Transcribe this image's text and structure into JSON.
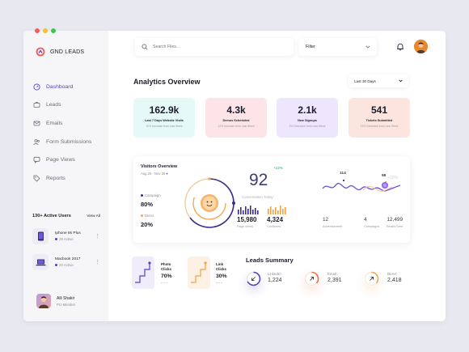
{
  "window": {
    "traffic_lights": [
      "#f25f58",
      "#fbbe2e",
      "#39c94a"
    ]
  },
  "brand": {
    "name": "GND LEADS",
    "accent": "#5b3fc2"
  },
  "sidebar": {
    "items": [
      {
        "label": "Dashboard",
        "icon": "dashboard-icon",
        "active": true
      },
      {
        "label": "Leads",
        "icon": "briefcase-icon",
        "active": false
      },
      {
        "label": "Emails",
        "icon": "mail-icon",
        "active": false
      },
      {
        "label": "Form Submissions",
        "icon": "users-icon",
        "active": false
      },
      {
        "label": "Page Views",
        "icon": "chat-icon",
        "active": false
      },
      {
        "label": "Reports",
        "icon": "tag-icon",
        "active": false
      }
    ],
    "active_users": {
      "title": "130+ Active Users",
      "link": "View All",
      "devices": [
        {
          "name": "Iphone 8s Plus",
          "meta": "28 Active",
          "icon": "phone-icon"
        },
        {
          "name": "Macbook 2017",
          "meta": "20 Active",
          "icon": "laptop-icon"
        }
      ]
    },
    "profile": {
      "name": "Alli Shakir",
      "role": "Pro Member"
    }
  },
  "header": {
    "search_placeholder": "Search Files...",
    "filter_label": "Filter"
  },
  "analytics": {
    "title": "Analytics Overview",
    "range": "Last 30 Days",
    "stats": [
      {
        "value": "162.9k",
        "label": "Last 7 Days Website Visits",
        "sub": "10% Increase from Last Week",
        "bg": "#e5f9f8"
      },
      {
        "value": "4.3k",
        "label": "Demos Scheduled",
        "sub": "12% Increase from Last Week",
        "bg": "#fde4e6"
      },
      {
        "value": "2.1k",
        "label": "New Signups",
        "sub": "3% Decrease from Last Week",
        "bg": "#ede6fd"
      },
      {
        "value": "541",
        "label": "Tickets Submitted",
        "sub": "15% Decrease from Last Week",
        "bg": "#fde5df"
      }
    ]
  },
  "visitors": {
    "title": "Visitors Overview",
    "date_range": "Aug 25 - Nov 25",
    "legend": [
      {
        "label": "Campaign",
        "value": "80%",
        "color": "#3c2a8a"
      },
      {
        "label": "Direct",
        "value": "20%",
        "color": "#f0a347"
      }
    ],
    "conversion": {
      "value": "92",
      "label": "Conversation Today",
      "delta": "+12%"
    },
    "page_views": {
      "value": "15,980",
      "label": "Page Views"
    },
    "contacted": {
      "value": "4,324",
      "label": "Contacted"
    },
    "peaks": [
      "114",
      "98"
    ],
    "peak_delta": "+10%",
    "kpis": [
      {
        "value": "12",
        "label": "Advertisement"
      },
      {
        "value": "4",
        "label": "Campaigns"
      },
      {
        "value": "12,499",
        "label": "Emails Sent"
      }
    ]
  },
  "clicks": [
    {
      "label_line1": "Photo",
      "label_line2": "Clicks",
      "value": "70%",
      "bg": "#f1ecfb",
      "color": "#5b3fc2"
    },
    {
      "label_line1": "Link",
      "label_line2": "Clicks",
      "value": "30%",
      "bg": "#fdf1e3",
      "color": "#f0a347"
    }
  ],
  "leads_summary": {
    "title": "Leads Summary",
    "sources": [
      {
        "name": "LinkedIn",
        "value": "1,224",
        "color": "#5b3fc2",
        "fill": 0.7
      },
      {
        "name": "Email",
        "value": "2,391",
        "color": "#f26a3b",
        "fill": 0.55
      },
      {
        "name": "Direct",
        "value": "2,418",
        "color": "#f0a347",
        "fill": 0.55
      }
    ]
  }
}
